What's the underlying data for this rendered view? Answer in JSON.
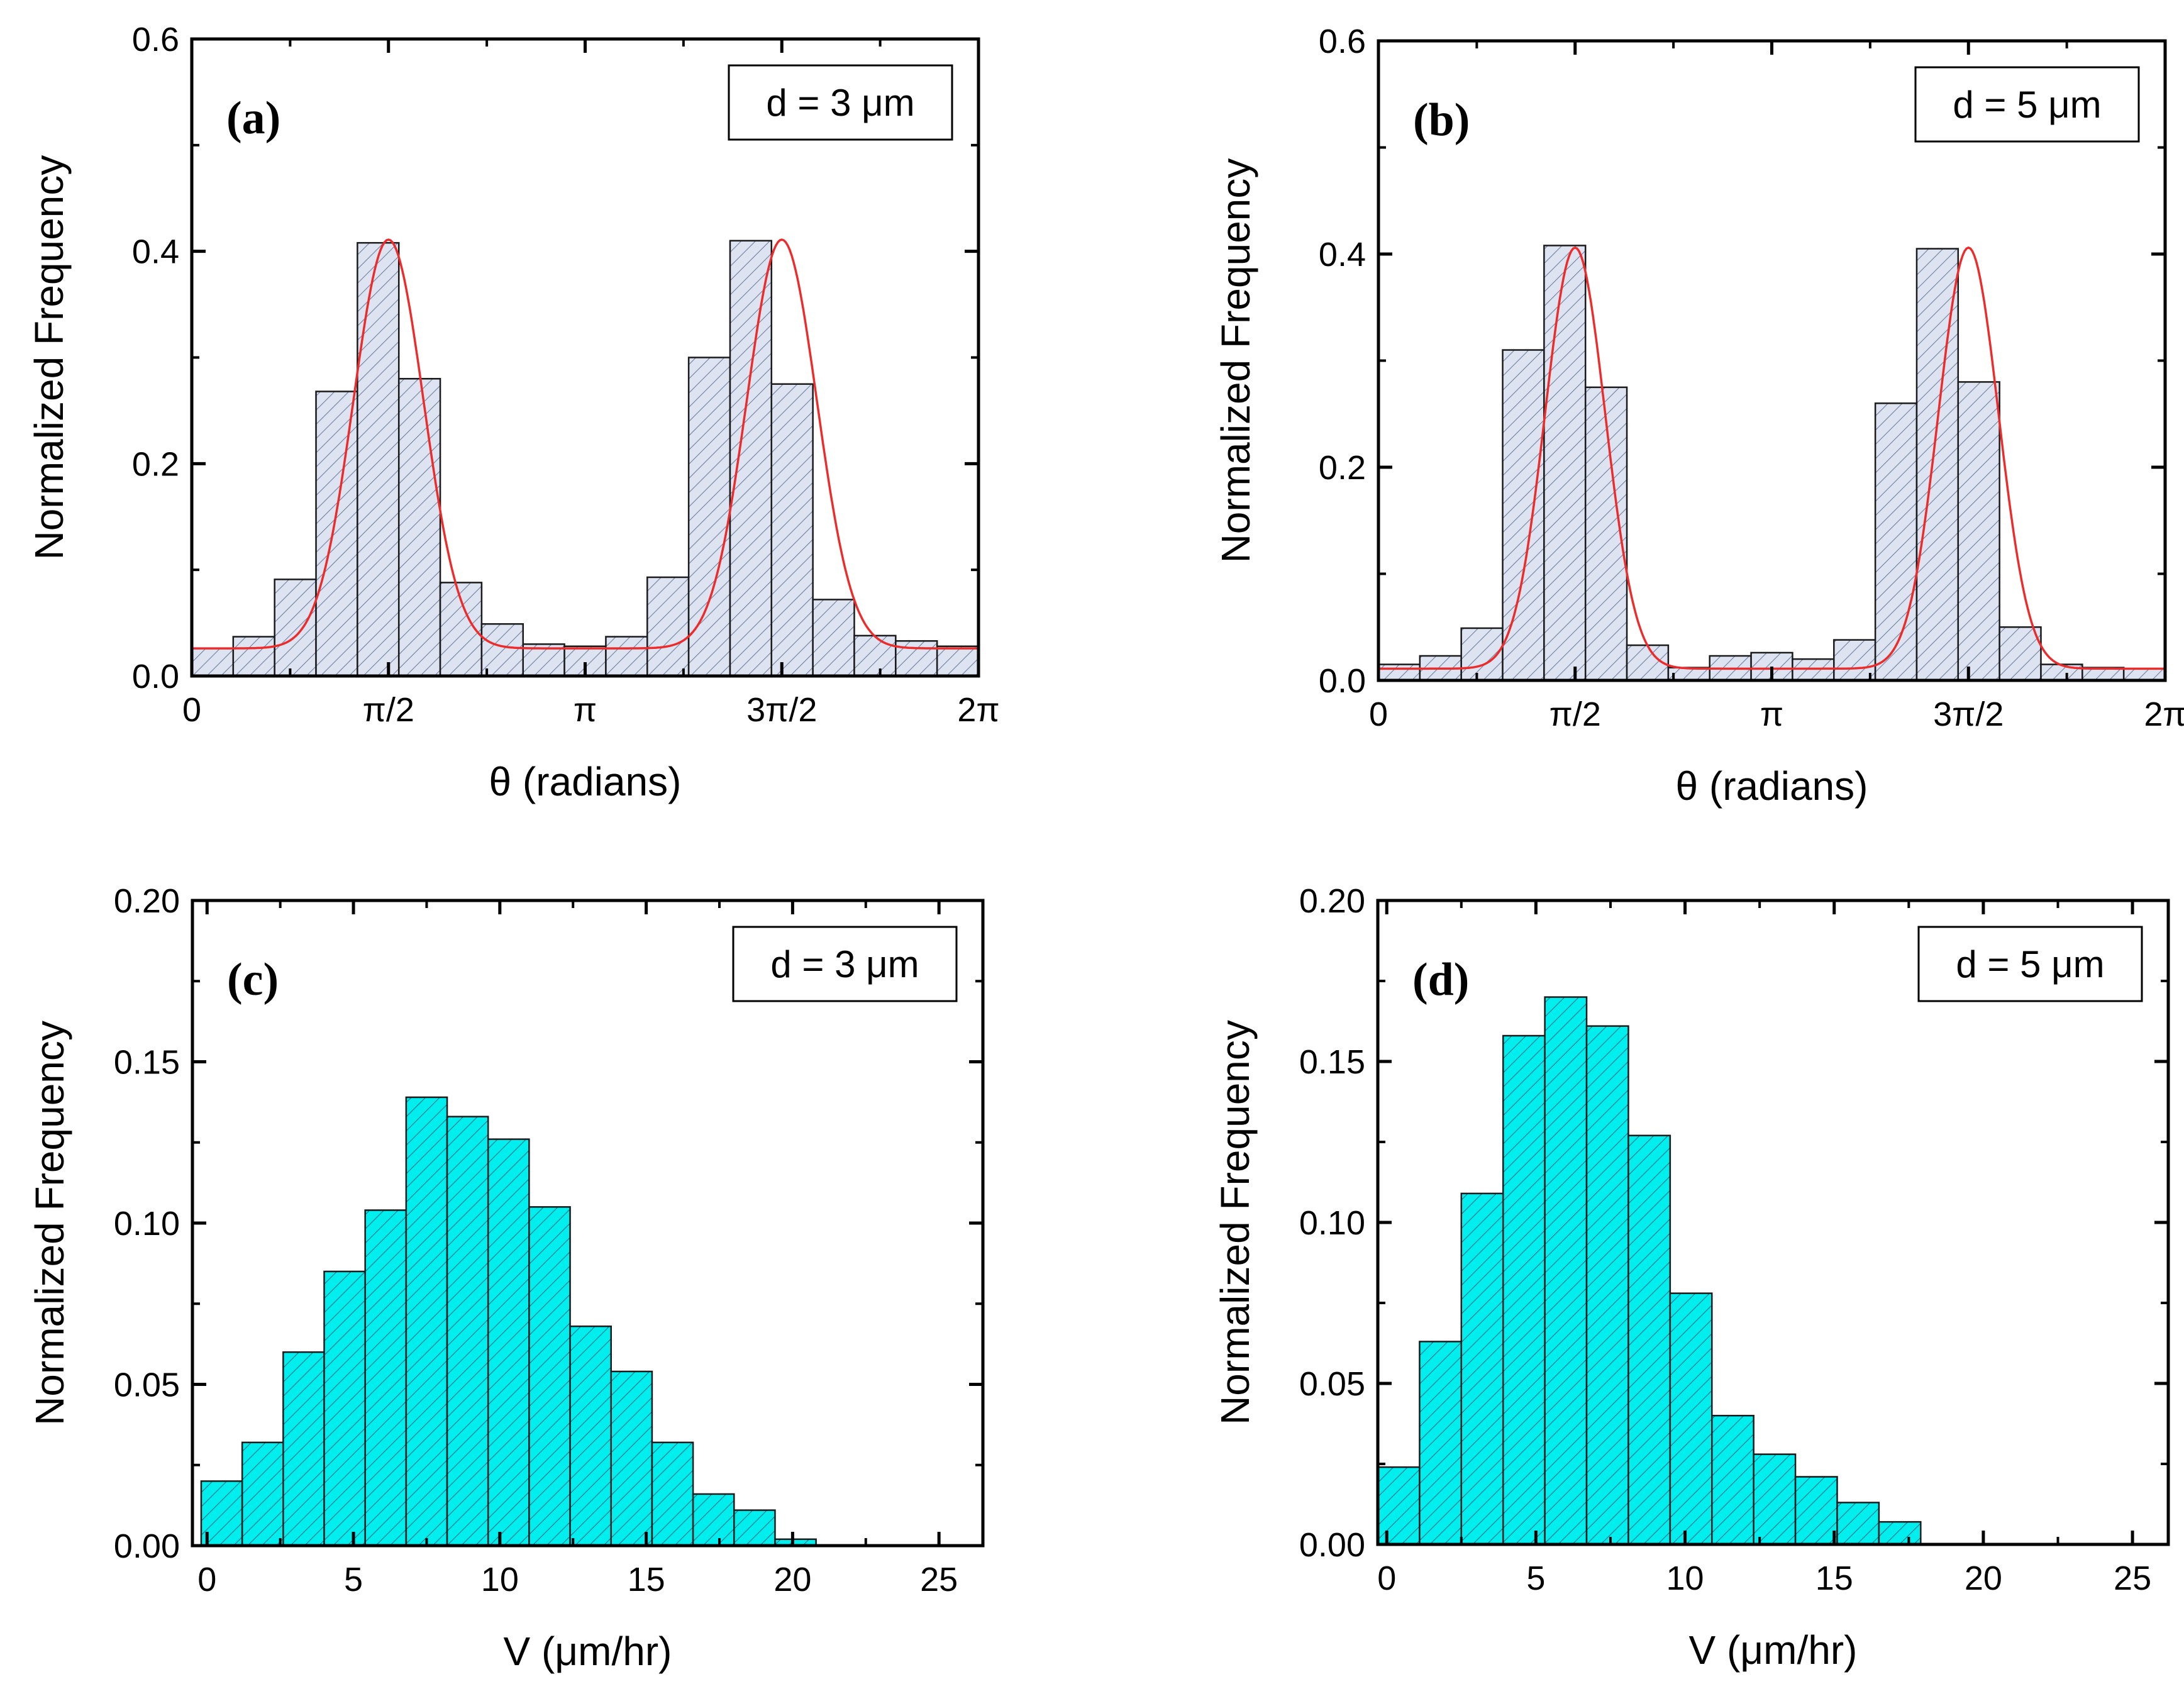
{
  "chart_data": [
    {
      "id": "a",
      "type": "bar",
      "panel_label": "(a)",
      "legend": "d = 3 μm",
      "xlabel": "θ (radians)",
      "ylabel": "Normalized Frequency",
      "xlim": [
        0,
        6.2832
      ],
      "ylim": [
        0,
        0.6
      ],
      "yticks": [
        0,
        0.2,
        0.4,
        0.6
      ],
      "ytick_labels": [
        "0.0",
        "0.2",
        "0.4",
        "0.6"
      ],
      "xticks": [
        0,
        1.5708,
        3.1416,
        4.7124,
        6.2832
      ],
      "xtick_labels": [
        "0",
        "π/2",
        "π",
        "3π/2",
        "2π"
      ],
      "bin_width": 0.3307,
      "bin_start": 0,
      "values": [
        0.026,
        0.037,
        0.091,
        0.268,
        0.408,
        0.28,
        0.088,
        0.049,
        0.03,
        0.028,
        0.037,
        0.093,
        0.3,
        0.41,
        0.275,
        0.072,
        0.038,
        0.033,
        0.028
      ],
      "fill": "#dde3f0",
      "hatch": "#6f7f9e",
      "fit": {
        "type": "gaussian-pair",
        "baseline": 0.026,
        "amplitude": 0.385,
        "centers": [
          1.5708,
          4.7124
        ],
        "sigma": 0.28,
        "color": "#ee2b2b"
      }
    },
    {
      "id": "b",
      "type": "bar",
      "panel_label": "(b)",
      "legend": "d = 5 μm",
      "xlabel": "θ (radians)",
      "ylabel": "Normalized Frequency",
      "xlim": [
        0,
        6.2832
      ],
      "ylim": [
        0,
        0.6
      ],
      "yticks": [
        0,
        0.2,
        0.4,
        0.6
      ],
      "ytick_labels": [
        "0.0",
        "0.2",
        "0.4",
        "0.6"
      ],
      "xticks": [
        0,
        1.5708,
        3.1416,
        4.7124,
        6.2832
      ],
      "xtick_labels": [
        "0",
        "π/2",
        "π",
        "3π/2",
        "2π"
      ],
      "bin_width": 0.3307,
      "bin_start": 0,
      "values": [
        0.015,
        0.023,
        0.049,
        0.31,
        0.408,
        0.275,
        0.033,
        0.012,
        0.023,
        0.026,
        0.02,
        0.038,
        0.26,
        0.405,
        0.28,
        0.05,
        0.015,
        0.012,
        0.011
      ],
      "fill": "#dde3f0",
      "hatch": "#6f7f9e",
      "fit": {
        "type": "gaussian-pair",
        "baseline": 0.011,
        "amplitude": 0.395,
        "centers": [
          1.5708,
          4.7124
        ],
        "sigma": 0.24,
        "color": "#ee2b2b"
      }
    },
    {
      "id": "c",
      "type": "bar",
      "panel_label": "(c)",
      "legend": "d = 3 μm",
      "xlabel": "V (μm/hr)",
      "ylabel": "Normalized Frequency",
      "xlim": [
        -0.5,
        26.5
      ],
      "ylim": [
        0,
        0.2
      ],
      "yticks": [
        0,
        0.05,
        0.1,
        0.15,
        0.2
      ],
      "ytick_labels": [
        "0.00",
        "0.05",
        "0.10",
        "0.15",
        "0.20"
      ],
      "xticks": [
        0,
        5,
        10,
        15,
        20,
        25
      ],
      "xtick_labels": [
        "0",
        "5",
        "10",
        "15",
        "20",
        "25"
      ],
      "bin_width": 1.4,
      "bin_start": -0.2,
      "values": [
        0.02,
        0.032,
        0.06,
        0.085,
        0.104,
        0.139,
        0.133,
        0.126,
        0.105,
        0.068,
        0.054,
        0.032,
        0.016,
        0.011,
        0.002
      ],
      "fill": "#00eeee",
      "hatch": "#1f6f80"
    },
    {
      "id": "d",
      "type": "bar",
      "panel_label": "(d)",
      "legend": "d = 5 μm",
      "xlabel": "V (μm/hr)",
      "ylabel": "Normalized Frequency",
      "xlim": [
        -0.3,
        26.2
      ],
      "ylim": [
        0,
        0.2
      ],
      "yticks": [
        0,
        0.05,
        0.1,
        0.15,
        0.2
      ],
      "ytick_labels": [
        "0.00",
        "0.05",
        "0.10",
        "0.15",
        "0.20"
      ],
      "xticks": [
        0,
        5,
        10,
        15,
        20,
        25
      ],
      "xtick_labels": [
        "0",
        "5",
        "10",
        "15",
        "20",
        "25"
      ],
      "bin_width": 1.4,
      "bin_start": -0.3,
      "values": [
        0.024,
        0.063,
        0.109,
        0.158,
        0.17,
        0.161,
        0.127,
        0.078,
        0.04,
        0.028,
        0.021,
        0.013,
        0.007
      ],
      "fill": "#00eeee",
      "hatch": "#1f6f80"
    }
  ]
}
